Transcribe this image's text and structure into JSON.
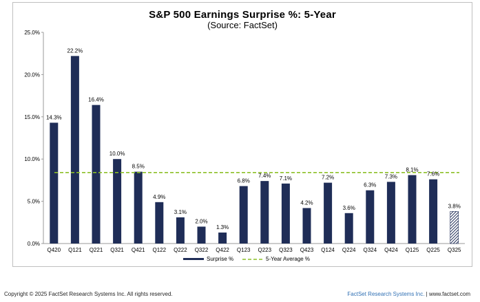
{
  "chart_data": {
    "type": "bar",
    "title": "S&P 500 Earnings Surprise %: 5-Year",
    "subtitle": "(Source: FactSet)",
    "categories": [
      "Q420",
      "Q121",
      "Q221",
      "Q321",
      "Q421",
      "Q122",
      "Q222",
      "Q322",
      "Q422",
      "Q123",
      "Q223",
      "Q323",
      "Q423",
      "Q124",
      "Q224",
      "Q324",
      "Q424",
      "Q125",
      "Q225",
      "Q325"
    ],
    "series": [
      {
        "name": "Surprise %",
        "values": [
          14.3,
          22.2,
          16.4,
          10.0,
          8.5,
          4.9,
          3.1,
          2.0,
          1.3,
          6.8,
          7.4,
          7.1,
          4.2,
          7.2,
          3.6,
          6.3,
          7.3,
          8.1,
          7.6,
          3.8
        ],
        "labels": [
          "14.3%",
          "22.2%",
          "16.4%",
          "10.0%",
          "8.5%",
          "4.9%",
          "3.1%",
          "2.0%",
          "1.3%",
          "6.8%",
          "7.4%",
          "7.1%",
          "4.2%",
          "7.2%",
          "3.6%",
          "6.3%",
          "7.3%",
          "8.1%",
          "7.6%",
          "3.8%"
        ],
        "color": "#1f2d57",
        "hatched_last": true
      }
    ],
    "reference_line": {
      "name": "5-Year Average %",
      "value": 8.4,
      "color": "#8cbf26"
    },
    "ylim": [
      0,
      25
    ],
    "yticks": [
      0,
      5,
      10,
      15,
      20,
      25
    ],
    "ytick_labels": [
      "0.0%",
      "5.0%",
      "10.0%",
      "15.0%",
      "20.0%",
      "25.0%"
    ],
    "xlabel": "",
    "ylabel": "",
    "legend": {
      "position": "bottom",
      "entries": [
        "Surprise %",
        "5-Year Average %"
      ]
    }
  },
  "footer": {
    "copyright": "Copyright © 2025 FactSet Research Systems Inc. All rights reserved.",
    "brand": "FactSet Research Systems Inc.",
    "separator": "|",
    "site": "www.factset.com"
  }
}
